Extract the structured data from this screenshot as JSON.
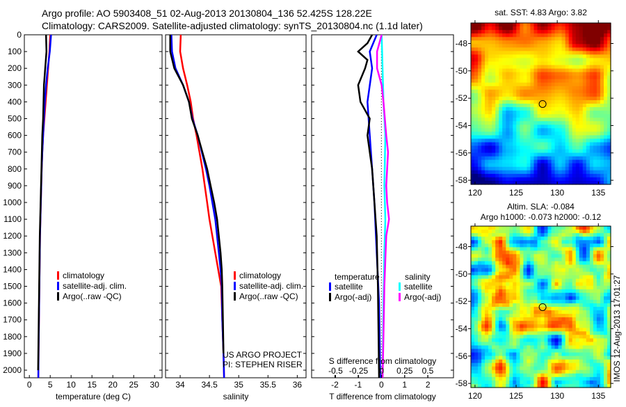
{
  "title": {
    "line1": "Argo profile: AO 5903408_51 02-Aug-2013 20130804_136 52.425S 128.22E",
    "line2": "Climatology: CARS2009. Satellite-adjusted climatology: synTS_20130804.nc (1.1d later)"
  },
  "colors": {
    "climatology": "#ff0000",
    "satellite": "#0000ff",
    "argo": "#000000",
    "sal_sat": "#00ffff",
    "sal_argo": "#ff00ff"
  },
  "chart_data": [
    {
      "type": "line",
      "name": "temperature-profile",
      "xlabel": "temperature (deg C)",
      "ylabel": "depth",
      "xlim": [
        -1.2,
        31.8
      ],
      "ylim": [
        2145,
        0
      ],
      "xticks": [
        "0",
        "5",
        "10",
        "15",
        "20",
        "25",
        "30"
      ],
      "xtick_values": [
        0,
        5,
        10,
        15,
        20,
        25,
        30
      ],
      "yticks": [
        "0",
        "100",
        "200",
        "300",
        "400",
        "500",
        "600",
        "700",
        "800",
        "900",
        "1000",
        "1100",
        "1200",
        "1300",
        "1400",
        "1500",
        "1600",
        "1700",
        "1800",
        "1900",
        "2000"
      ],
      "legend": [
        "climatology",
        "satellite-adj. clim.",
        "Argo(..raw -QC)"
      ],
      "series": [
        {
          "name": "climatology",
          "color": "#ff0000",
          "points": [
            [
              5.0,
              0
            ],
            [
              4.8,
              100
            ],
            [
              4.5,
              200
            ],
            [
              4.2,
              300
            ],
            [
              3.9,
              400
            ],
            [
              3.6,
              500
            ],
            [
              3.3,
              600
            ],
            [
              3.1,
              700
            ],
            [
              2.95,
              800
            ],
            [
              2.85,
              900
            ],
            [
              2.75,
              1000
            ],
            [
              2.65,
              1100
            ],
            [
              2.55,
              1200
            ],
            [
              2.5,
              1300
            ],
            [
              2.45,
              1400
            ],
            [
              2.4,
              1500
            ],
            [
              2.35,
              1600
            ],
            [
              2.3,
              1700
            ],
            [
              2.25,
              1800
            ],
            [
              2.2,
              1900
            ],
            [
              2.15,
              2050
            ]
          ]
        },
        {
          "name": "satellite-adj. clim.",
          "color": "#0000ff",
          "points": [
            [
              5.2,
              0
            ],
            [
              4.9,
              100
            ],
            [
              4.4,
              200
            ],
            [
              4.0,
              300
            ],
            [
              3.7,
              400
            ],
            [
              3.5,
              500
            ],
            [
              3.3,
              600
            ],
            [
              3.1,
              700
            ],
            [
              2.95,
              800
            ],
            [
              2.85,
              900
            ],
            [
              2.75,
              1000
            ],
            [
              2.65,
              1100
            ],
            [
              2.55,
              1200
            ],
            [
              2.5,
              1300
            ],
            [
              2.45,
              1400
            ],
            [
              2.4,
              1500
            ],
            [
              2.35,
              1600
            ],
            [
              2.3,
              1700
            ],
            [
              2.25,
              1800
            ],
            [
              2.2,
              1900
            ],
            [
              2.15,
              2050
            ]
          ]
        },
        {
          "name": "Argo(..raw -QC)",
          "color": "#000000",
          "points": [
            [
              4.0,
              0
            ],
            [
              4.1,
              100
            ],
            [
              3.8,
              200
            ],
            [
              3.5,
              300
            ],
            [
              3.4,
              400
            ],
            [
              3.3,
              500
            ],
            [
              3.1,
              600
            ],
            [
              3.0,
              700
            ],
            [
              2.9,
              800
            ],
            [
              2.8,
              900
            ],
            [
              2.7,
              1000
            ],
            [
              2.6,
              1100
            ],
            [
              2.5,
              1200
            ],
            [
              2.45,
              1300
            ],
            [
              2.4,
              1400
            ],
            [
              2.35,
              1500
            ],
            [
              2.3,
              1600
            ],
            [
              2.25,
              1700
            ],
            [
              2.2,
              1800
            ],
            [
              2.15,
              1900
            ],
            [
              2.1,
              2000
            ]
          ]
        }
      ]
    },
    {
      "type": "line",
      "name": "salinity-profile",
      "xlabel": "salinity",
      "xlim": [
        33.75,
        36.15
      ],
      "ylim": [
        2145,
        0
      ],
      "xticks": [
        "34",
        "34.5",
        "35",
        "35.5",
        "36"
      ],
      "xtick_values": [
        34,
        34.5,
        35,
        35.5,
        36
      ],
      "legend": [
        "climatology",
        "satellite-adj. clim.",
        "Argo(..raw -QC)"
      ],
      "annotations": [
        "US ARGO PROJECT",
        "PI: STEPHEN RISER"
      ],
      "series": [
        {
          "name": "climatology",
          "color": "#ff0000",
          "points": [
            [
              34.01,
              0
            ],
            [
              34.0,
              100
            ],
            [
              34.05,
              200
            ],
            [
              34.12,
              300
            ],
            [
              34.18,
              400
            ],
            [
              34.22,
              500
            ],
            [
              34.28,
              600
            ],
            [
              34.33,
              700
            ],
            [
              34.38,
              800
            ],
            [
              34.42,
              900
            ],
            [
              34.46,
              1000
            ],
            [
              34.5,
              1100
            ],
            [
              34.55,
              1200
            ],
            [
              34.6,
              1300
            ],
            [
              34.65,
              1400
            ],
            [
              34.7,
              1500
            ],
            [
              34.72,
              1700
            ],
            [
              34.74,
              1900
            ],
            [
              34.75,
              2050
            ]
          ]
        },
        {
          "name": "satellite-adj. clim.",
          "color": "#0000ff",
          "points": [
            [
              33.85,
              0
            ],
            [
              33.86,
              100
            ],
            [
              33.92,
              200
            ],
            [
              34.05,
              300
            ],
            [
              34.15,
              400
            ],
            [
              34.21,
              500
            ],
            [
              34.3,
              600
            ],
            [
              34.37,
              700
            ],
            [
              34.44,
              800
            ],
            [
              34.5,
              900
            ],
            [
              34.55,
              1000
            ],
            [
              34.6,
              1100
            ],
            [
              34.63,
              1200
            ],
            [
              34.66,
              1300
            ],
            [
              34.69,
              1400
            ],
            [
              34.71,
              1500
            ],
            [
              34.72,
              1700
            ],
            [
              34.74,
              1900
            ],
            [
              34.75,
              2050
            ]
          ]
        },
        {
          "name": "Argo(..raw -QC)",
          "color": "#000000",
          "points": [
            [
              33.83,
              0
            ],
            [
              33.83,
              100
            ],
            [
              33.9,
              200
            ],
            [
              34.05,
              300
            ],
            [
              34.15,
              400
            ],
            [
              34.2,
              500
            ],
            [
              34.3,
              600
            ],
            [
              34.38,
              700
            ],
            [
              34.46,
              800
            ],
            [
              34.52,
              900
            ],
            [
              34.58,
              1000
            ],
            [
              34.63,
              1100
            ],
            [
              34.66,
              1200
            ],
            [
              34.69,
              1300
            ],
            [
              34.71,
              1400
            ],
            [
              34.72,
              1500
            ],
            [
              34.73,
              1700
            ],
            [
              34.74,
              1900
            ]
          ]
        }
      ]
    },
    {
      "type": "line",
      "name": "difference-profile",
      "xlabel": "T difference from climatology",
      "x2label": "S difference from climatology",
      "xlim": [
        -3,
        3.1
      ],
      "x2lim": [
        -0.76,
        0.78
      ],
      "ylim": [
        2145,
        0
      ],
      "xticks": [
        "-2",
        "-1",
        "0",
        "1",
        "2"
      ],
      "xtick_values": [
        -2,
        -1,
        0,
        1,
        2
      ],
      "x2ticks": [
        "-0.5",
        "-0.25",
        "0",
        "0.25",
        "0.5"
      ],
      "x2tick_values": [
        -0.5,
        -0.25,
        0,
        0.25,
        0.5
      ],
      "legend_headers": [
        "temperature",
        "salinity"
      ],
      "legend": [
        "satellite",
        "Argo(-adj)",
        "satellite",
        "Argo(-adj)"
      ],
      "series": [
        {
          "name": "T satellite",
          "axis": "T",
          "color": "#0000ff",
          "points": [
            [
              -0.2,
              0
            ],
            [
              -0.5,
              100
            ],
            [
              -0.4,
              200
            ],
            [
              -0.6,
              400
            ],
            [
              -0.5,
              600
            ],
            [
              -0.4,
              800
            ],
            [
              -0.3,
              1000
            ],
            [
              -0.2,
              1300
            ],
            [
              -0.1,
              1600
            ],
            [
              -0.05,
              2050
            ]
          ]
        },
        {
          "name": "T Argo(-adj)",
          "axis": "T",
          "color": "#000000",
          "points": [
            [
              -0.4,
              0
            ],
            [
              -0.6,
              50
            ],
            [
              -1.0,
              100
            ],
            [
              -0.6,
              150
            ],
            [
              -0.7,
              200
            ],
            [
              -1.0,
              300
            ],
            [
              -0.9,
              400
            ],
            [
              -0.5,
              500
            ],
            [
              -0.6,
              600
            ],
            [
              -0.5,
              700
            ],
            [
              -0.4,
              800
            ],
            [
              -0.3,
              1000
            ],
            [
              -0.2,
              1200
            ],
            [
              -0.15,
              1500
            ],
            [
              -0.1,
              2050
            ]
          ]
        },
        {
          "name": "S satellite",
          "axis": "S",
          "color": "#00ffff",
          "points": [
            [
              0.0,
              0
            ],
            [
              0.01,
              200
            ],
            [
              0.02,
              400
            ],
            [
              0.04,
              600
            ],
            [
              0.03,
              900
            ],
            [
              0.04,
              1100
            ],
            [
              0.03,
              1300
            ],
            [
              0.02,
              1600
            ],
            [
              0.01,
              2050
            ]
          ]
        },
        {
          "name": "S Argo(-adj)",
          "axis": "S",
          "color": "#ff00ff",
          "points": [
            [
              0.0,
              0
            ],
            [
              -0.05,
              100
            ],
            [
              -0.05,
              200
            ],
            [
              0.0,
              300
            ],
            [
              0.02,
              400
            ],
            [
              0.05,
              600
            ],
            [
              0.07,
              700
            ],
            [
              0.05,
              900
            ],
            [
              0.06,
              1000
            ],
            [
              0.08,
              1100
            ],
            [
              0.05,
              1200
            ],
            [
              0.03,
              1500
            ],
            [
              0.02,
              1800
            ],
            [
              0.01,
              2050
            ]
          ]
        }
      ]
    },
    {
      "type": "heatmap",
      "name": "sst-map",
      "title": "sat. SST: 4.83 Argo: 3.82",
      "xlim": [
        119.5,
        136.5
      ],
      "ylim": [
        -58.3,
        -46.5
      ],
      "xticks": [
        "120",
        "125",
        "130",
        "135"
      ],
      "xtick_values": [
        120,
        125,
        130,
        135
      ],
      "yticks": [
        "-48",
        "-50",
        "-52",
        "-54",
        "-56",
        "-58"
      ],
      "ytick_values": [
        -48,
        -50,
        -52,
        -54,
        -56,
        -58
      ],
      "marker": {
        "lon": 128.22,
        "lat": -52.425
      }
    },
    {
      "type": "heatmap",
      "name": "sla-map",
      "title": "Altim. SLA: -0.084",
      "subtitle": "Argo h1000: -0.073 h2000: -0.12",
      "xlim": [
        119.5,
        136.5
      ],
      "ylim": [
        -58.3,
        -46.5
      ],
      "xticks": [
        "120",
        "125",
        "130",
        "135"
      ],
      "xtick_values": [
        120,
        125,
        130,
        135
      ],
      "yticks": [
        "-48",
        "-50",
        "-52",
        "-54",
        "-56",
        "-58"
      ],
      "ytick_values": [
        -48,
        -50,
        -52,
        -54,
        -56,
        -58
      ],
      "marker": {
        "lon": 128.22,
        "lat": -52.425
      },
      "side_label": "IMOS 12-Aug-2013 17:01:27"
    }
  ]
}
